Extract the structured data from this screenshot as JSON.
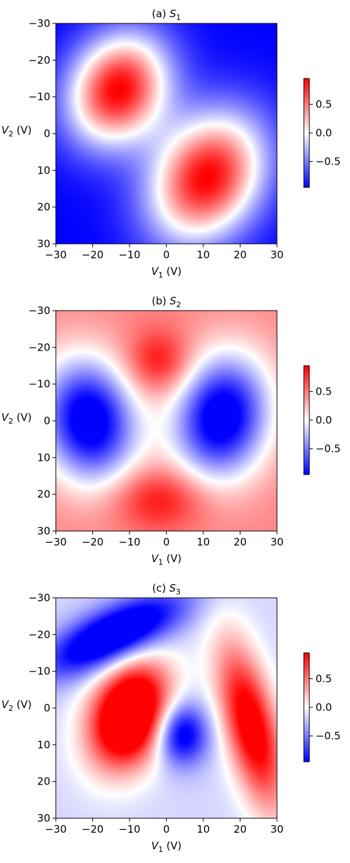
{
  "chart_data": [
    {
      "type": "heatmap",
      "title_prefix": "(a) ",
      "title_var": "S",
      "title_sub": "1",
      "xlabel_var": "V",
      "xlabel_sub": "1",
      "xlabel_unit": " (V)",
      "ylabel_var": "V",
      "ylabel_sub": "2",
      "ylabel_unit": " (V)",
      "xlim": [
        -30,
        30
      ],
      "ylim": [
        -30,
        30
      ],
      "y_inverted": true,
      "xticks": [
        -30,
        -20,
        -10,
        0,
        10,
        20,
        30
      ],
      "yticks": [
        -30,
        -20,
        -10,
        0,
        10,
        20,
        30
      ],
      "xtick_labels": [
        "−30",
        "−20",
        "−10",
        "0",
        "10",
        "20",
        "30"
      ],
      "ytick_labels": [
        "−30",
        "−20",
        "−10",
        "0",
        "10",
        "20",
        "30"
      ],
      "colormap": "bwr",
      "clim": [
        -0.95,
        0.95
      ],
      "colorbar_ticks": [
        0.5,
        0.0,
        -0.5
      ],
      "colorbar_tick_labels": [
        "0.5",
        "0.0",
        "−0.5"
      ],
      "colorbar_visible": true,
      "grid": false,
      "features": [
        {
          "x": -13,
          "y": -12,
          "amp": 1.9,
          "sx": 9,
          "sy": 11,
          "rot": 0.5
        },
        {
          "x": 11,
          "y": 12,
          "amp": 1.9,
          "sx": 10,
          "sy": 13,
          "rot": 0.55
        }
      ],
      "baseline": -0.95
    },
    {
      "type": "heatmap",
      "title_prefix": "(b) ",
      "title_var": "S",
      "title_sub": "2",
      "xlabel_var": "V",
      "xlabel_sub": "1",
      "xlabel_unit": " (V)",
      "ylabel_var": "V",
      "ylabel_sub": "2",
      "ylabel_unit": " (V)",
      "xlim": [
        -30,
        30
      ],
      "ylim": [
        -30,
        30
      ],
      "y_inverted": true,
      "xticks": [
        -30,
        -20,
        -10,
        0,
        10,
        20,
        30
      ],
      "yticks": [
        -30,
        -20,
        -10,
        0,
        10,
        20,
        30
      ],
      "xtick_labels": [
        "−30",
        "−20",
        "−10",
        "0",
        "10",
        "20",
        "30"
      ],
      "ytick_labels": [
        "−30",
        "−20",
        "−10",
        "0",
        "10",
        "20",
        "30"
      ],
      "colormap": "bwr",
      "clim": [
        -0.95,
        0.95
      ],
      "colorbar_ticks": [
        0.5,
        0.0,
        -0.5
      ],
      "colorbar_tick_labels": [
        "0.5",
        "0.0",
        "−0.5"
      ],
      "colorbar_visible": true,
      "grid": false,
      "features": [
        {
          "x": -21,
          "y": 0,
          "amp": -1.6,
          "sx": 9,
          "sy": 12,
          "rot": -0.2
        },
        {
          "x": 15,
          "y": -1,
          "amp": -1.6,
          "sx": 9,
          "sy": 12,
          "rot": 0.2
        },
        {
          "x": -2,
          "y": -16,
          "amp": 0.5,
          "sx": 6,
          "sy": 6,
          "rot": 0
        },
        {
          "x": -2,
          "y": 21,
          "amp": 0.5,
          "sx": 9,
          "sy": 6,
          "rot": 0
        }
      ],
      "baseline": 0.45
    },
    {
      "type": "heatmap",
      "title_prefix": "(c) ",
      "title_var": "S",
      "title_sub": "3",
      "xlabel_var": "V",
      "xlabel_sub": "1",
      "xlabel_unit": " (V)",
      "ylabel_var": "V",
      "ylabel_sub": "2",
      "ylabel_unit": " (V)",
      "xlim": [
        -30,
        30
      ],
      "ylim": [
        -30,
        30
      ],
      "y_inverted": true,
      "xticks": [
        -30,
        -20,
        -10,
        0,
        10,
        20,
        30
      ],
      "yticks": [
        -30,
        -20,
        -10,
        0,
        10,
        20,
        30
      ],
      "xtick_labels": [
        "−30",
        "−20",
        "−10",
        "0",
        "10",
        "20",
        "30"
      ],
      "ytick_labels": [
        "−30",
        "−20",
        "−10",
        "0",
        "10",
        "20",
        "30"
      ],
      "colormap": "bwr",
      "clim": [
        -0.95,
        0.95
      ],
      "colorbar_ticks": [
        0.5,
        0.0,
        -0.5
      ],
      "colorbar_tick_labels": [
        "0.5",
        "0.0",
        "−0.5"
      ],
      "colorbar_visible": true,
      "grid": false,
      "features": [
        {
          "x": -10,
          "y": 2,
          "amp": 1.9,
          "sx": 7,
          "sy": 10,
          "rot": 0.35
        },
        {
          "x": 4,
          "y": 7,
          "amp": -1.0,
          "sx": 5,
          "sy": 6,
          "rot": 0
        },
        {
          "x": 23,
          "y": 5,
          "amp": 1.3,
          "sx": 5,
          "sy": 16,
          "rot": -0.25
        },
        {
          "x": -14,
          "y": -20,
          "amp": -1.3,
          "sx": 14,
          "sy": 5,
          "rot": -0.45
        },
        {
          "x": 26,
          "y": 24,
          "amp": 0.0,
          "sx": 4,
          "sy": 4,
          "rot": 0
        }
      ],
      "baseline": -0.15
    }
  ]
}
